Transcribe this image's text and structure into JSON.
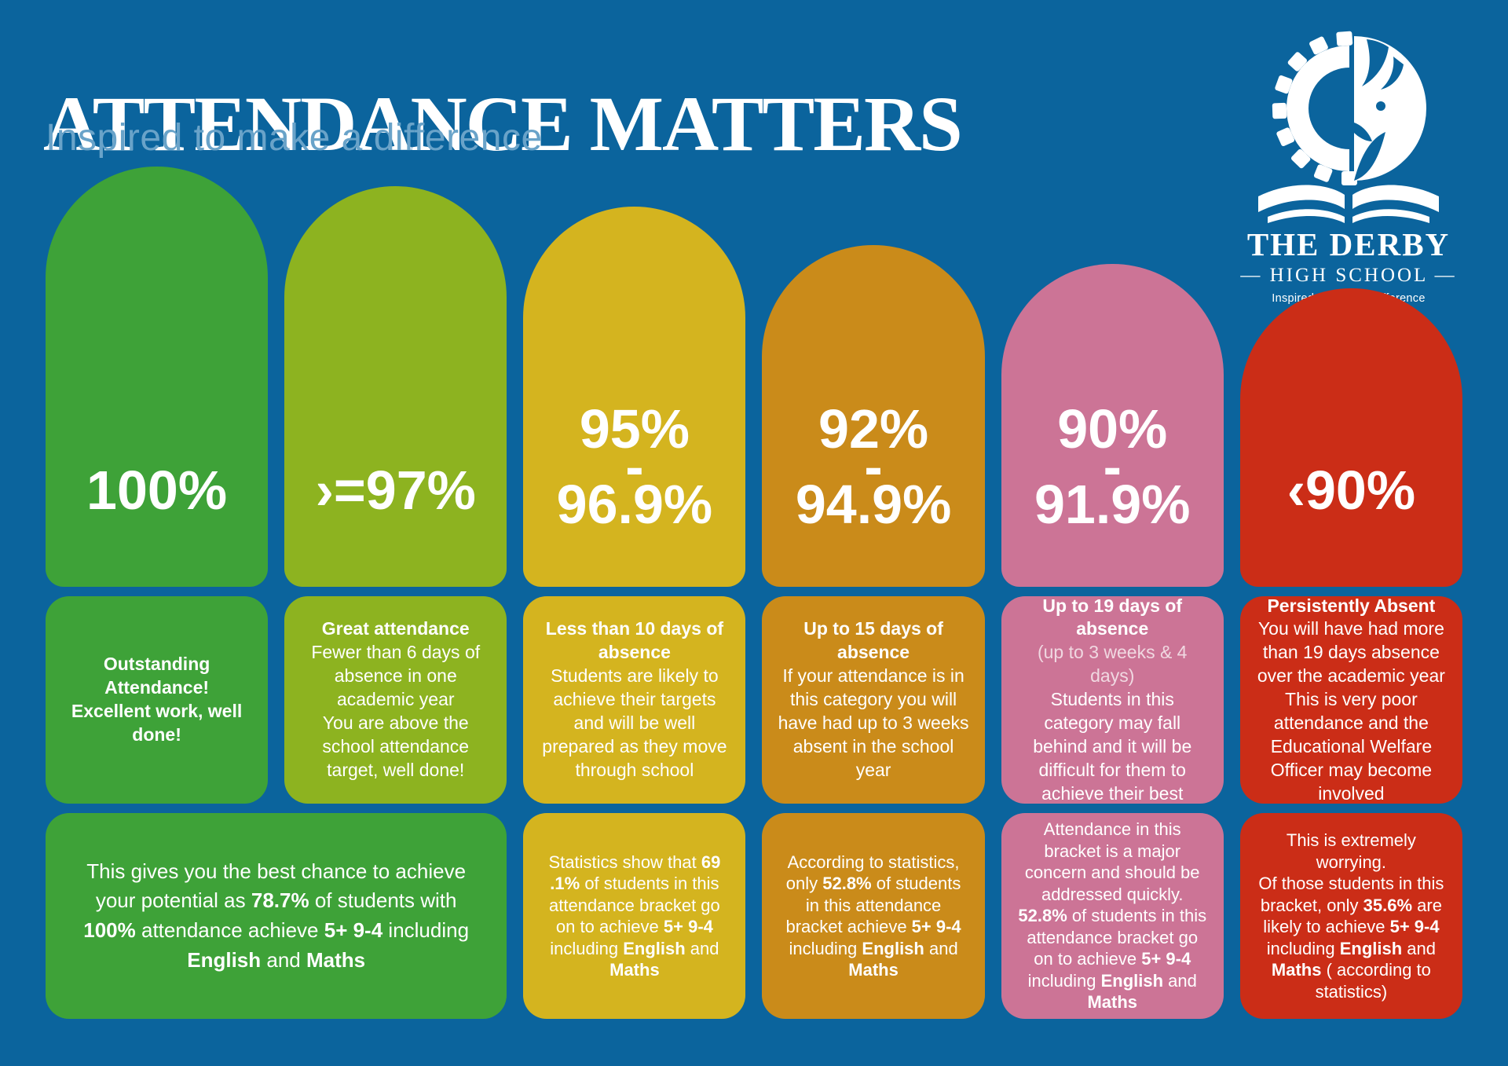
{
  "header": {
    "title": "ATTENDANCE MATTERS",
    "subtitle": "Inspired to make a difference"
  },
  "logo": {
    "school_name": "THE DERBY",
    "school_type": "— HIGH SCHOOL —",
    "tagline": "Inspired to make a difference"
  },
  "colors": {
    "background": "#0B649D",
    "subtitle_text": "#69A3C9",
    "green_100": "#3EA238",
    "light_green_97": "#8DB320",
    "yellow_95": "#D4B41F",
    "orange_92": "#CA8B1A",
    "pink_90": "#CC7496",
    "red_below_90": "#CB2D17"
  },
  "columns": [
    {
      "key": "100",
      "color": "#3EA238",
      "label_lines": [
        "100%"
      ],
      "middle": [
        {
          "t": "Outstanding Attendance!\nExcellent work, well done!",
          "b": true
        }
      ]
    },
    {
      "key": "97_plus",
      "color": "#8DB320",
      "label_lines": [
        "›=97%"
      ],
      "middle": [
        {
          "t": "Great attendance",
          "b": true
        },
        {
          "t": "\nFewer than 6 days of absence in one academic year\nYou are above the school attendance target, well done!",
          "b": false
        }
      ]
    },
    {
      "key": "95_96",
      "color": "#D4B41F",
      "label_lines": [
        "95%",
        "-",
        "96.9%"
      ],
      "middle": [
        {
          "t": "Less than 10 days of absence",
          "b": true
        },
        {
          "t": "\nStudents are likely to achieve their targets and will be well prepared as they move through school",
          "b": false
        }
      ],
      "bottom": [
        {
          "t": "Statistics show that ",
          "b": false
        },
        {
          "t": "69 .1%",
          "b": true
        },
        {
          "t": " of students in this attendance bracket go on to achieve ",
          "b": false
        },
        {
          "t": "5+ 9-4",
          "b": true
        },
        {
          "t": " including ",
          "b": false
        },
        {
          "t": "English",
          "b": true
        },
        {
          "t": " and ",
          "b": false
        },
        {
          "t": "Maths",
          "b": true
        }
      ]
    },
    {
      "key": "92_94",
      "color": "#CA8B1A",
      "label_lines": [
        "92%",
        "-",
        "94.9%"
      ],
      "middle": [
        {
          "t": "Up to 15 days of absence",
          "b": true
        },
        {
          "t": "\nIf your attendance is in this category you will have had up to 3 weeks absent in the school year",
          "b": false
        }
      ],
      "bottom": [
        {
          "t": "According to statistics, only ",
          "b": false
        },
        {
          "t": "52.8%",
          "b": true
        },
        {
          "t": " of students in this attendance bracket achieve ",
          "b": false
        },
        {
          "t": "5+ 9-4",
          "b": true
        },
        {
          "t": " including ",
          "b": false
        },
        {
          "t": "English",
          "b": true
        },
        {
          "t": " and ",
          "b": false
        },
        {
          "t": "Maths",
          "b": true
        }
      ]
    },
    {
      "key": "90_91",
      "color": "#CC7496",
      "label_lines": [
        "90%",
        "-",
        "91.9%"
      ],
      "middle": [
        {
          "t": "Up to 19 days of absence",
          "b": true
        },
        {
          "t": "\n",
          "b": false
        },
        {
          "t": "(up to 3 weeks  & 4 days)",
          "b": false,
          "light": true
        },
        {
          "t": "\nStudents in this category may fall behind and it will be difficult for them to achieve their best",
          "b": false
        }
      ],
      "bottom": [
        {
          "t": "Attendance in this bracket is a major concern and should be addressed quickly. ",
          "b": false
        },
        {
          "t": "52.8%",
          "b": true
        },
        {
          "t": " of students in this attendance bracket go on to achieve ",
          "b": false
        },
        {
          "t": "5+ 9-4",
          "b": true
        },
        {
          "t": " including ",
          "b": false
        },
        {
          "t": "English",
          "b": true
        },
        {
          "t": " and ",
          "b": false
        },
        {
          "t": "Maths",
          "b": true
        }
      ]
    },
    {
      "key": "below_90",
      "color": "#CB2D17",
      "label_lines": [
        "‹90%"
      ],
      "middle": [
        {
          "t": "Persistently Absent",
          "b": true
        },
        {
          "t": "\nYou will have had more than 19 days absence over the academic year\nThis is very poor attendance and the Educational Welfare Officer may become involved",
          "b": false
        }
      ],
      "bottom": [
        {
          "t": "This is extremely worrying.\nOf those students in this bracket, only ",
          "b": false
        },
        {
          "t": "35.6%",
          "b": true
        },
        {
          "t": " are likely to achieve ",
          "b": false
        },
        {
          "t": "5+ 9-4",
          "b": true
        },
        {
          "t": " including ",
          "b": false
        },
        {
          "t": "English",
          "b": true
        },
        {
          "t": " and ",
          "b": false
        },
        {
          "t": "Maths",
          "b": true
        },
        {
          "t": " ( according to statistics)",
          "b": false
        }
      ]
    }
  ],
  "shared_bottom_100_97": [
    {
      "t": "This gives you the best chance to achieve your potential as ",
      "b": false
    },
    {
      "t": "78.7%",
      "b": true
    },
    {
      "t": " of students with ",
      "b": false
    },
    {
      "t": "100%",
      "b": true
    },
    {
      "t": " attendance achieve ",
      "b": false
    },
    {
      "t": "5+ 9-4",
      "b": true
    },
    {
      "t": " including ",
      "b": false
    },
    {
      "t": "English",
      "b": true
    },
    {
      "t": " and ",
      "b": false
    },
    {
      "t": "Maths",
      "b": true
    }
  ]
}
